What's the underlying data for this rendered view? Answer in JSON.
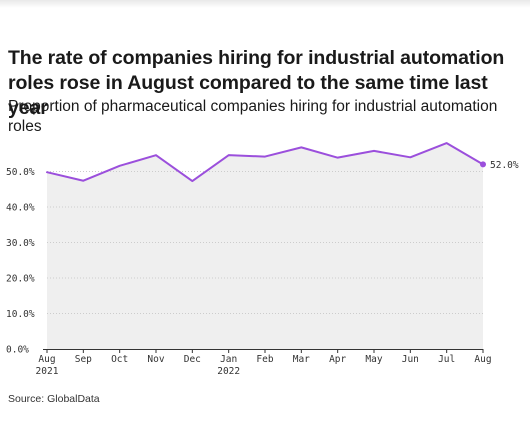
{
  "title": "The rate of companies hiring for industrial automation roles rose in August compared to the same time last year",
  "subtitle": "Proportion of pharmaceutical companies hiring for industrial automation roles",
  "source": "Source: GlobalData",
  "colors": {
    "line": "#9b4fdc",
    "area": "#efefef",
    "grid": "#cccccc",
    "axis": "#333333"
  },
  "chart_data": {
    "type": "area",
    "x": [
      "Aug 2021",
      "Sep 2021",
      "Oct 2021",
      "Nov 2021",
      "Dec 2021",
      "Jan 2022",
      "Feb 2022",
      "Mar 2022",
      "Apr 2022",
      "May 2022",
      "Jun 2022",
      "Jul 2022",
      "Aug 2022"
    ],
    "x_tick_labels": [
      {
        "month": "Aug",
        "year": "2021"
      },
      {
        "month": "Sep",
        "year": ""
      },
      {
        "month": "Oct",
        "year": ""
      },
      {
        "month": "Nov",
        "year": ""
      },
      {
        "month": "Dec",
        "year": ""
      },
      {
        "month": "Jan",
        "year": "2022"
      },
      {
        "month": "Feb",
        "year": ""
      },
      {
        "month": "Mar",
        "year": ""
      },
      {
        "month": "Apr",
        "year": ""
      },
      {
        "month": "May",
        "year": ""
      },
      {
        "month": "Jun",
        "year": ""
      },
      {
        "month": "Jul",
        "year": ""
      },
      {
        "month": "Aug",
        "year": ""
      }
    ],
    "values": [
      49.8,
      47.4,
      51.6,
      54.6,
      47.3,
      54.6,
      54.2,
      56.8,
      53.9,
      55.8,
      54.0,
      58.0,
      52.0
    ],
    "last_value_label": "52.0%",
    "ylim": [
      0,
      60
    ],
    "yticks": [
      0,
      10,
      20,
      30,
      40,
      50
    ],
    "ytick_labels": [
      "0.0%",
      "10.0%",
      "20.0%",
      "30.0%",
      "40.0%",
      "50.0%"
    ],
    "grid": true,
    "xlabel": "",
    "ylabel": ""
  }
}
